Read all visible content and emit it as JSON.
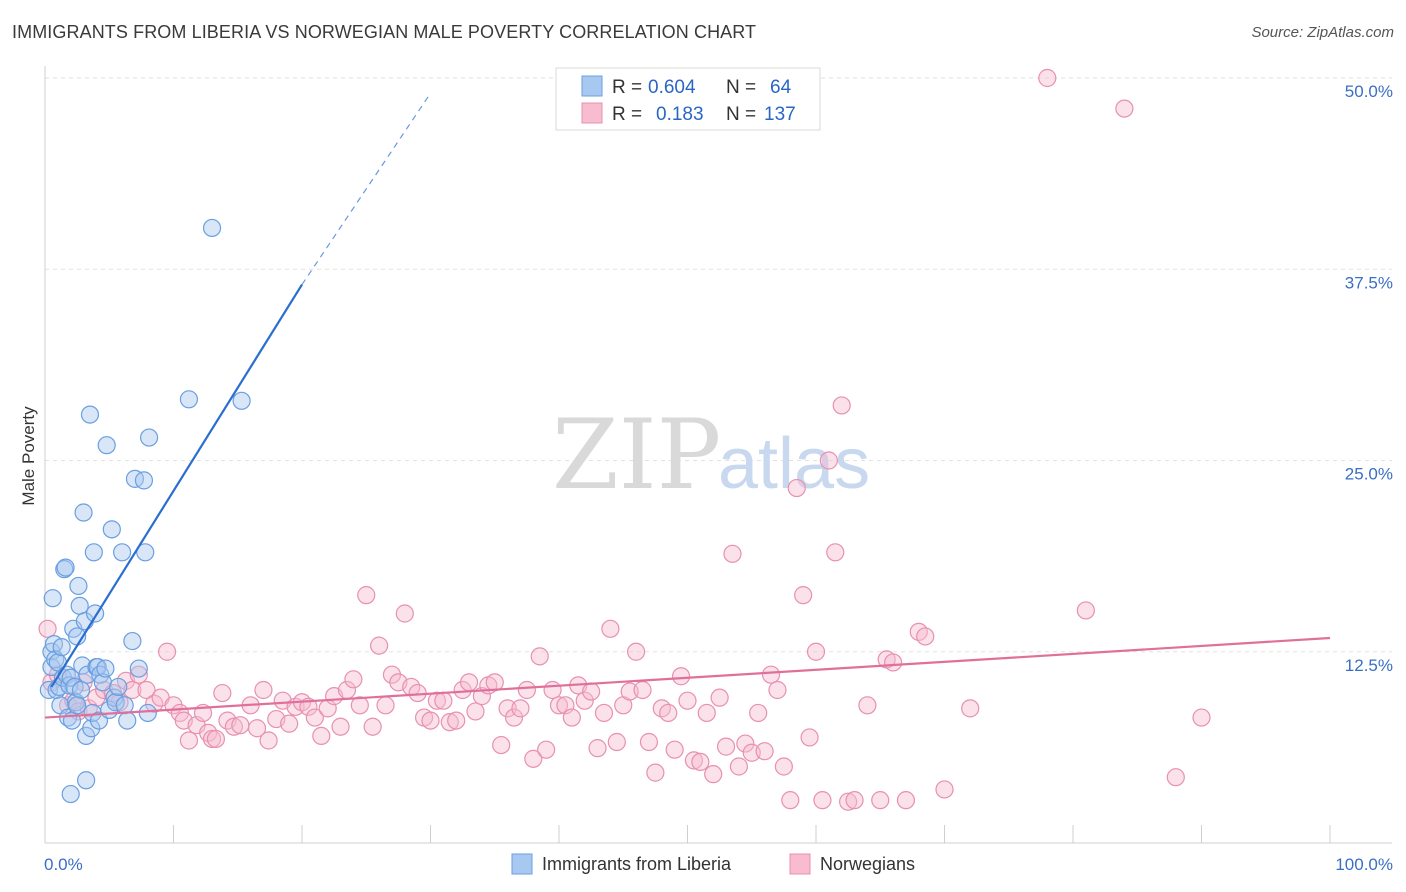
{
  "header": {
    "title": "IMMIGRANTS FROM LIBERIA VS NORWEGIAN MALE POVERTY CORRELATION CHART",
    "source": "Source: ZipAtlas.com"
  },
  "watermark": {
    "zip": "ZIP",
    "atlas": "atlas"
  },
  "legend": {
    "r_label": "R =",
    "n_label": "N =",
    "items": [
      {
        "r": "0.604",
        "n": "64",
        "color": "#a9c8f0",
        "stroke": "#6a9fe0"
      },
      {
        "r": "0.183",
        "n": "137",
        "color": "#f7bcd0",
        "stroke": "#e890b0"
      }
    ]
  },
  "bottom_legend": {
    "items": [
      {
        "label": "Immigrants from Liberia",
        "color": "#a9c8f0",
        "stroke": "#6a9fe0"
      },
      {
        "label": "Norwegians",
        "color": "#f7bcd0",
        "stroke": "#e890b0"
      }
    ]
  },
  "chart_data": {
    "type": "scatter",
    "title": "IMMIGRANTS FROM LIBERIA VS NORWEGIAN MALE POVERTY CORRELATION CHART",
    "xlabel": "",
    "ylabel": "Male Poverty",
    "xlim": [
      0,
      100
    ],
    "ylim": [
      0,
      50
    ],
    "x_tick_labels": [
      "0.0%",
      "100.0%"
    ],
    "y_ticks": [
      12.5,
      25.0,
      37.5,
      50.0
    ],
    "y_tick_labels": [
      "12.5%",
      "25.0%",
      "37.5%",
      "50.0%"
    ],
    "grid": true,
    "series": [
      {
        "name": "Immigrants from Liberia",
        "color": "#6a9fe0",
        "fill": "#a9c8f0",
        "trend": {
          "x0": 0.5,
          "y0": 10.2,
          "x1": 20,
          "y1": 36.5,
          "dash_x1": 30,
          "dash_y1": 49.0,
          "color": "#2a6ed0"
        },
        "points": [
          [
            0.3,
            10
          ],
          [
            0.5,
            12.5
          ],
          [
            0.5,
            11.5
          ],
          [
            0.6,
            16
          ],
          [
            0.7,
            13
          ],
          [
            0.8,
            12
          ],
          [
            0.9,
            10
          ],
          [
            1.0,
            11.8
          ],
          [
            1.1,
            10.2
          ],
          [
            1.2,
            9
          ],
          [
            1.3,
            12.8
          ],
          [
            1.4,
            10.8
          ],
          [
            1.5,
            17.9
          ],
          [
            1.6,
            18
          ],
          [
            1.7,
            11
          ],
          [
            1.8,
            8.2
          ],
          [
            1.9,
            10.3
          ],
          [
            2.0,
            10.8
          ],
          [
            2.1,
            8
          ],
          [
            2.2,
            14
          ],
          [
            2.3,
            10.2
          ],
          [
            2.4,
            9.2
          ],
          [
            2.5,
            13.5
          ],
          [
            2.6,
            16.8
          ],
          [
            2.7,
            15.5
          ],
          [
            2.8,
            10
          ],
          [
            2.9,
            11.6
          ],
          [
            3.0,
            21.6
          ],
          [
            3.1,
            14.5
          ],
          [
            3.2,
            7
          ],
          [
            3.3,
            11
          ],
          [
            3.5,
            28
          ],
          [
            3.6,
            7.5
          ],
          [
            3.7,
            8.5
          ],
          [
            3.8,
            19
          ],
          [
            3.9,
            15
          ],
          [
            4.0,
            11.5
          ],
          [
            4.1,
            11.5
          ],
          [
            4.2,
            8
          ],
          [
            4.3,
            11
          ],
          [
            4.5,
            10.5
          ],
          [
            4.7,
            11.4
          ],
          [
            4.8,
            26
          ],
          [
            5.0,
            8.7
          ],
          [
            5.2,
            20.5
          ],
          [
            5.4,
            9.5
          ],
          [
            5.5,
            9.2
          ],
          [
            5.7,
            10.2
          ],
          [
            6.0,
            19
          ],
          [
            6.2,
            9
          ],
          [
            6.4,
            8
          ],
          [
            6.8,
            13.2
          ],
          [
            7.0,
            23.8
          ],
          [
            7.3,
            11.4
          ],
          [
            7.7,
            23.7
          ],
          [
            7.8,
            19
          ],
          [
            8.0,
            8.5
          ],
          [
            8.1,
            26.5
          ],
          [
            11.2,
            29
          ],
          [
            13.0,
            40.2
          ],
          [
            15.3,
            28.9
          ],
          [
            2.0,
            3.2
          ],
          [
            3.2,
            4.1
          ],
          [
            2.5,
            9
          ]
        ]
      },
      {
        "name": "Norwegians",
        "color": "#e890b0",
        "fill": "#f7bcd0",
        "trend": {
          "x0": 0,
          "y0": 8.2,
          "x1": 100,
          "y1": 13.4,
          "color": "#e0709a"
        },
        "points": [
          [
            0.2,
            14
          ],
          [
            0.5,
            10.5
          ],
          [
            1.0,
            11
          ],
          [
            1.8,
            9
          ],
          [
            2.2,
            9.3
          ],
          [
            2.6,
            8.6
          ],
          [
            3.0,
            10.5
          ],
          [
            3.4,
            8.8
          ],
          [
            4.0,
            9.5
          ],
          [
            4.6,
            10
          ],
          [
            5.3,
            9.8
          ],
          [
            5.8,
            9.2
          ],
          [
            6.3,
            10.6
          ],
          [
            6.8,
            10
          ],
          [
            7.3,
            11
          ],
          [
            7.9,
            10
          ],
          [
            8.5,
            9.1
          ],
          [
            9.0,
            9.5
          ],
          [
            9.5,
            12.5
          ],
          [
            10,
            9
          ],
          [
            10.5,
            8.5
          ],
          [
            10.8,
            8
          ],
          [
            11.2,
            6.7
          ],
          [
            11.8,
            7.7
          ],
          [
            12.3,
            8.5
          ],
          [
            12.7,
            7.2
          ],
          [
            13.0,
            6.8
          ],
          [
            13.3,
            6.8
          ],
          [
            13.8,
            9.8
          ],
          [
            14.2,
            8
          ],
          [
            14.7,
            7.6
          ],
          [
            15.2,
            7.7
          ],
          [
            16.0,
            9
          ],
          [
            16.5,
            7.5
          ],
          [
            17,
            10
          ],
          [
            17.4,
            6.7
          ],
          [
            18,
            8.1
          ],
          [
            18.5,
            9.3
          ],
          [
            19,
            7.8
          ],
          [
            19.5,
            8.9
          ],
          [
            20,
            9.2
          ],
          [
            20.5,
            8.9
          ],
          [
            21,
            8.2
          ],
          [
            21.5,
            7
          ],
          [
            22,
            8.8
          ],
          [
            22.5,
            9.6
          ],
          [
            23,
            7.6
          ],
          [
            23.5,
            10
          ],
          [
            24,
            10.7
          ],
          [
            24.5,
            9
          ],
          [
            25,
            16.2
          ],
          [
            25.5,
            7.6
          ],
          [
            26,
            12.9
          ],
          [
            26.5,
            9
          ],
          [
            27,
            11
          ],
          [
            27.5,
            10.5
          ],
          [
            28,
            15
          ],
          [
            28.5,
            10.2
          ],
          [
            29,
            9.8
          ],
          [
            29.5,
            8.2
          ],
          [
            30,
            8
          ],
          [
            30.5,
            9.3
          ],
          [
            31,
            9.3
          ],
          [
            31.5,
            7.9
          ],
          [
            32,
            8
          ],
          [
            32.5,
            10
          ],
          [
            33,
            10.5
          ],
          [
            33.5,
            8.6
          ],
          [
            34,
            9.6
          ],
          [
            34.5,
            10.3
          ],
          [
            35,
            10.5
          ],
          [
            35.5,
            6.4
          ],
          [
            36,
            8.8
          ],
          [
            36.5,
            8.2
          ],
          [
            37,
            8.8
          ],
          [
            37.5,
            10
          ],
          [
            38,
            5.5
          ],
          [
            38.5,
            12.2
          ],
          [
            39,
            6.1
          ],
          [
            39.5,
            10
          ],
          [
            40,
            9
          ],
          [
            40.5,
            9
          ],
          [
            41,
            8.2
          ],
          [
            41.5,
            10.3
          ],
          [
            42,
            9.3
          ],
          [
            42.5,
            9.9
          ],
          [
            43,
            6.2
          ],
          [
            43.5,
            8.5
          ],
          [
            44,
            14
          ],
          [
            44.5,
            6.6
          ],
          [
            45,
            9
          ],
          [
            45.5,
            9.9
          ],
          [
            46,
            12.5
          ],
          [
            46.5,
            10
          ],
          [
            47,
            6.6
          ],
          [
            47.5,
            4.6
          ],
          [
            48,
            8.8
          ],
          [
            48.5,
            8.5
          ],
          [
            49,
            6.1
          ],
          [
            49.5,
            10.9
          ],
          [
            50,
            9.3
          ],
          [
            50.5,
            5.4
          ],
          [
            51,
            5.3
          ],
          [
            51.5,
            8.5
          ],
          [
            52,
            4.5
          ],
          [
            52.5,
            9.5
          ],
          [
            53,
            6.3
          ],
          [
            53.5,
            18.9
          ],
          [
            54,
            5
          ],
          [
            54.5,
            6.5
          ],
          [
            55,
            5.9
          ],
          [
            55.5,
            8.5
          ],
          [
            56,
            6
          ],
          [
            56.5,
            11
          ],
          [
            57,
            10
          ],
          [
            57.5,
            5
          ],
          [
            58,
            2.8
          ],
          [
            58.5,
            23.2
          ],
          [
            59,
            16.2
          ],
          [
            59.5,
            6.9
          ],
          [
            60,
            12.5
          ],
          [
            60.5,
            2.8
          ],
          [
            61,
            25
          ],
          [
            61.5,
            19
          ],
          [
            62,
            28.6
          ],
          [
            62.5,
            2.7
          ],
          [
            63,
            2.8
          ],
          [
            64,
            9
          ],
          [
            65,
            2.8
          ],
          [
            65.5,
            12
          ],
          [
            66,
            11.8
          ],
          [
            67,
            2.8
          ],
          [
            68,
            13.8
          ],
          [
            68.5,
            13.5
          ],
          [
            70,
            3.5
          ],
          [
            72,
            8.8
          ],
          [
            78,
            50
          ],
          [
            81,
            15.2
          ],
          [
            84,
            48
          ],
          [
            88,
            4.3
          ],
          [
            90,
            8.2
          ]
        ]
      }
    ]
  }
}
